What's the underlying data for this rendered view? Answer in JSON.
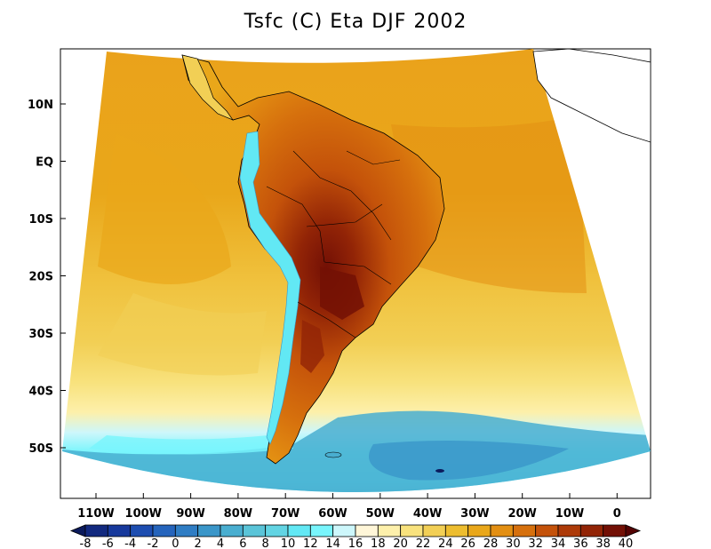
{
  "title": "Tsfc (C) Eta DJF 2002",
  "y_ticks": [
    "10N",
    "EQ",
    "10S",
    "20S",
    "30S",
    "40S",
    "50S"
  ],
  "x_ticks": [
    "110W",
    "100W",
    "90W",
    "80W",
    "70W",
    "60W",
    "50W",
    "40W",
    "30W",
    "20W",
    "10W",
    "0"
  ],
  "colorbar": {
    "labels": [
      "-8",
      "-6",
      "-4",
      "-2",
      "0",
      "2",
      "4",
      "6",
      "8",
      "10",
      "12",
      "14",
      "16",
      "18",
      "20",
      "22",
      "24",
      "26",
      "28",
      "30",
      "32",
      "34",
      "36",
      "38",
      "40"
    ],
    "colors": [
      "#0b1a5c",
      "#12297f",
      "#17399c",
      "#1d4db0",
      "#2564bc",
      "#2f7dc4",
      "#3a96c9",
      "#49aed0",
      "#5ac4d8",
      "#62d4e3",
      "#62e8f4",
      "#78f5fc",
      "#cdf7fb",
      "#fff6d8",
      "#fdf0ab",
      "#f8e27d",
      "#f2cf55",
      "#edbd2f",
      "#e9a71a",
      "#e38f12",
      "#d6700d",
      "#c4520a",
      "#ad3a08",
      "#922406",
      "#731005",
      "#540303"
    ]
  },
  "palette": {
    "ocean_warm": "#eaa21b",
    "ocean_mid": "#f0c23e",
    "ocean_light": "#f7e07a",
    "cool_cyan": "#62e8f4",
    "cool_deep": "#3a96c9",
    "land_hot": "#922406",
    "land_warm": "#d6700d"
  }
}
